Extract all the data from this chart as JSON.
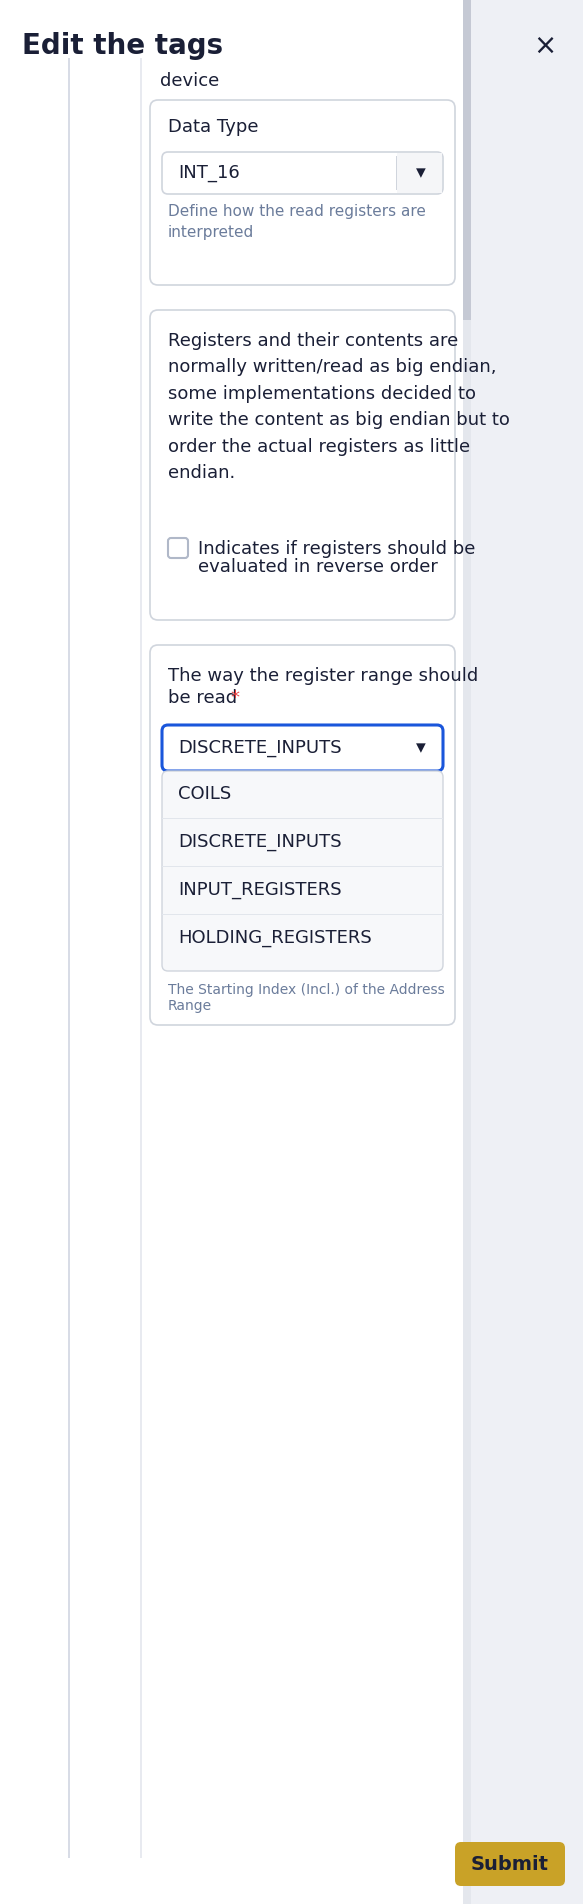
{
  "title": "Edit the tags",
  "close_symbol": "×",
  "bg_color": "#eef0f5",
  "white": "#ffffff",
  "border_color": "#d0d5dd",
  "text_dark": "#1a1f36",
  "text_gray": "#6b7c9b",
  "accent_red": "#e53e3e",
  "device_label": "device",
  "data_type_label": "Data Type",
  "data_type_value": "INT_16",
  "data_type_hint": "Define how the read registers are\ninterpreted",
  "endian_text": "Registers and their contents are\nnormally written/read as big endian,\nsome implementations decided to\nwrite the content as big endian but to\norder the actual registers as little\nendian.",
  "checkbox_label_1": "Indicates if registers should be",
  "checkbox_label_2": "evaluated in reverse order",
  "register_range_line1": "The way the register range should",
  "register_range_line2": "be read",
  "register_range_value": "DISCRETE_INPUTS",
  "dropdown_options": [
    "COILS",
    "DISCRETE_INPUTS",
    "INPUT_REGISTERS",
    "HOLDING_REGISTERS"
  ],
  "address_hint_1": "The Starting Index (Incl.) of the Address",
  "address_hint_2": "Range",
  "submit_label": "Submit",
  "submit_bg": "#c9a227",
  "submit_text_color": "#1a1f36",
  "dropdown_border_blue": "#1a56db",
  "scrollbar_track": "#e4e7ed",
  "scrollbar_thumb": "#c5c9d4",
  "left_border": "#d8dce6",
  "title_fontsize": 20,
  "body_fontsize": 13,
  "hint_fontsize": 11,
  "small_fontsize": 10
}
